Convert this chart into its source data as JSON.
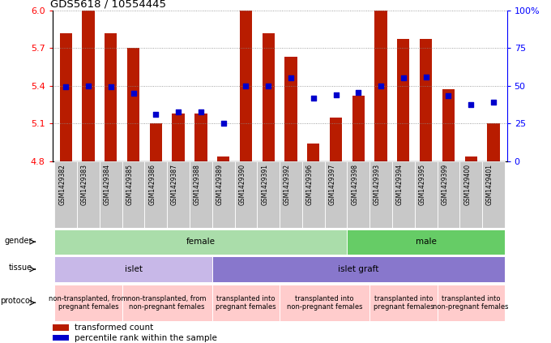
{
  "title": "GDS5618 / 10554445",
  "samples": [
    "GSM1429382",
    "GSM1429383",
    "GSM1429384",
    "GSM1429385",
    "GSM1429386",
    "GSM1429387",
    "GSM1429388",
    "GSM1429389",
    "GSM1429390",
    "GSM1429391",
    "GSM1429392",
    "GSM1429396",
    "GSM1429397",
    "GSM1429398",
    "GSM1429393",
    "GSM1429394",
    "GSM1429395",
    "GSM1429399",
    "GSM1429400",
    "GSM1429401"
  ],
  "red_bars": [
    5.82,
    6.0,
    5.82,
    5.7,
    5.1,
    5.18,
    5.18,
    4.84,
    6.0,
    5.82,
    5.63,
    4.94,
    5.15,
    5.32,
    6.0,
    5.77,
    5.77,
    5.37,
    4.84,
    5.1
  ],
  "blue_squares": [
    5.39,
    5.4,
    5.39,
    5.34,
    5.17,
    5.19,
    5.19,
    5.1,
    5.4,
    5.4,
    5.46,
    5.3,
    5.33,
    5.35,
    5.4,
    5.46,
    5.47,
    5.32,
    5.25,
    5.27
  ],
  "ylim_left": [
    4.8,
    6.0
  ],
  "yticks_left": [
    4.8,
    5.1,
    5.4,
    5.7,
    6.0
  ],
  "ytick_labels_right": [
    "0",
    "25",
    "50",
    "75",
    "100%"
  ],
  "bar_color": "#b81c00",
  "square_color": "#0000cc",
  "grid_color": "#888888",
  "bg_color": "#ffffff",
  "label_row_bg": "#c8c8c8",
  "gender_groups": [
    {
      "label": "female",
      "start": 0,
      "end": 13,
      "color": "#aaddaa"
    },
    {
      "label": "male",
      "start": 13,
      "end": 20,
      "color": "#66cc66"
    }
  ],
  "tissue_groups": [
    {
      "label": "islet",
      "start": 0,
      "end": 7,
      "color": "#c8b8e8"
    },
    {
      "label": "islet graft",
      "start": 7,
      "end": 20,
      "color": "#8877cc"
    }
  ],
  "protocol_groups": [
    {
      "label": "non-transplanted, from\npregnant females",
      "start": 0,
      "end": 3,
      "color": "#ffcccc"
    },
    {
      "label": "non-transplanted, from\nnon-pregnant females",
      "start": 3,
      "end": 7,
      "color": "#ffcccc"
    },
    {
      "label": "transplanted into\npregnant females",
      "start": 7,
      "end": 10,
      "color": "#ffcccc"
    },
    {
      "label": "transplanted into\nnon-pregnant females",
      "start": 10,
      "end": 14,
      "color": "#ffcccc"
    },
    {
      "label": "transplanted into\npregnant females",
      "start": 14,
      "end": 17,
      "color": "#ffcccc"
    },
    {
      "label": "transplanted into\nnon-pregnant females",
      "start": 17,
      "end": 20,
      "color": "#ffcccc"
    }
  ]
}
